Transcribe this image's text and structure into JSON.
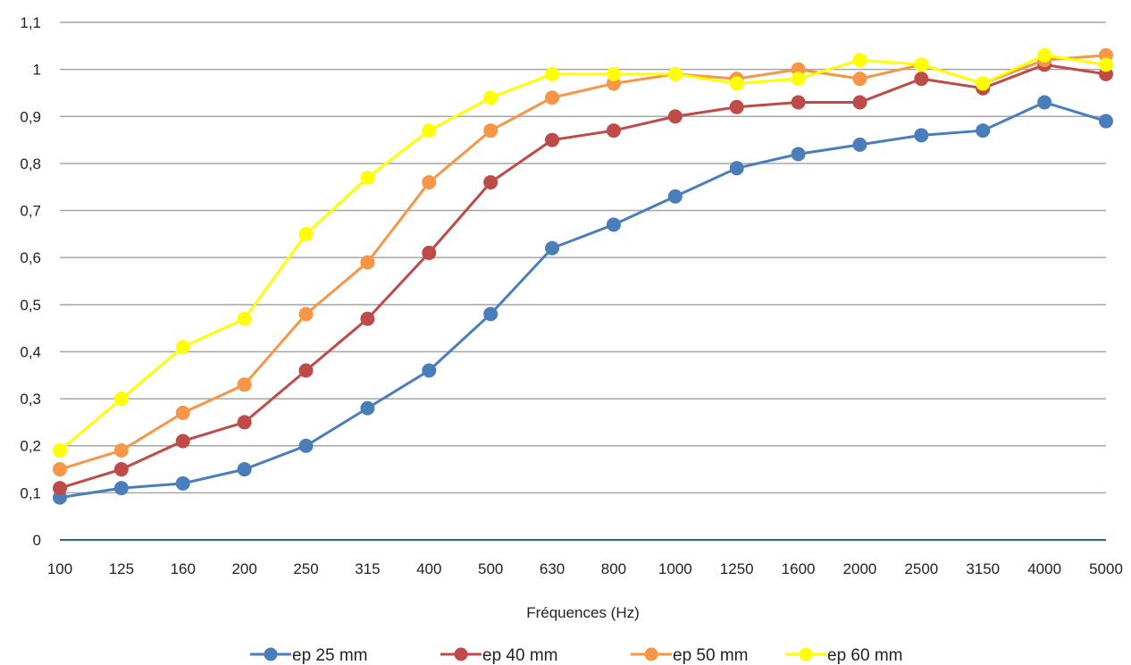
{
  "chart_data": {
    "type": "line",
    "title": "",
    "xlabel": "Fréquences (Hz)",
    "ylabel": "",
    "categories": [
      "100",
      "125",
      "160",
      "200",
      "250",
      "315",
      "400",
      "500",
      "630",
      "800",
      "1000",
      "1250",
      "1600",
      "2000",
      "2500",
      "3150",
      "4000",
      "5000"
    ],
    "ylim": [
      0,
      1.1
    ],
    "yticks": [
      "0",
      "0,1",
      "0,2",
      "0,3",
      "0,4",
      "0,5",
      "0,6",
      "0,7",
      "0,8",
      "0,9",
      "1",
      "1,1"
    ],
    "grid": true,
    "legend_position": "bottom",
    "series": [
      {
        "name": "ep 25 mm",
        "color": "#4a7ebb",
        "values": [
          0.09,
          0.11,
          0.12,
          0.15,
          0.2,
          0.28,
          0.36,
          0.48,
          0.62,
          0.67,
          0.73,
          0.79,
          0.82,
          0.84,
          0.86,
          0.87,
          0.93,
          0.89
        ]
      },
      {
        "name": "ep 40 mm",
        "color": "#be4b48",
        "values": [
          0.11,
          0.15,
          0.21,
          0.25,
          0.36,
          0.47,
          0.61,
          0.76,
          0.85,
          0.87,
          0.9,
          0.92,
          0.93,
          0.93,
          0.98,
          0.96,
          1.01,
          0.99
        ]
      },
      {
        "name": "ep 50 mm",
        "color": "#f79646",
        "values": [
          0.15,
          0.19,
          0.27,
          0.33,
          0.48,
          0.59,
          0.76,
          0.87,
          0.94,
          0.97,
          0.99,
          0.98,
          1.0,
          0.98,
          1.01,
          0.97,
          1.02,
          1.03
        ]
      },
      {
        "name": "ep 60 mm",
        "color": "#ffff00",
        "values": [
          0.19,
          0.3,
          0.41,
          0.47,
          0.65,
          0.77,
          0.87,
          0.94,
          0.99,
          0.99,
          0.99,
          0.97,
          0.98,
          1.02,
          1.01,
          0.97,
          1.03,
          1.01
        ]
      }
    ]
  }
}
